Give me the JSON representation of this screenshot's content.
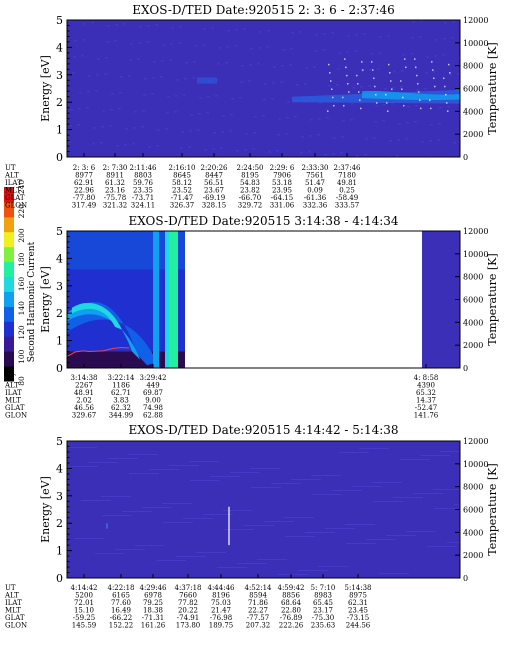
{
  "colorbar": {
    "label": "Second Harmonic Current",
    "ticks": [
      "80",
      "100",
      "120",
      "140",
      "160",
      "180",
      "200",
      "220",
      "240"
    ],
    "colors": [
      "#000000",
      "#2a0a50",
      "#3b1a9a",
      "#2030d0",
      "#1060e8",
      "#10a0f0",
      "#20d8e0",
      "#20f0a0",
      "#80f040",
      "#f0f020",
      "#f0a010",
      "#f05010",
      "#e01010"
    ]
  },
  "panels": [
    {
      "title": "EXOS-D/TED   Date:920515  2: 3: 6 - 2:37:46",
      "ylabel": "Energy [eV]",
      "y2label": "Temperature [K]",
      "yticks": [
        "0",
        "1",
        "2",
        "3",
        "4",
        "5"
      ],
      "y2ticks": [
        "0",
        "2000",
        "4000",
        "6000",
        "8000",
        "10000",
        "12000"
      ],
      "bg": "#3b2fb8",
      "rowlabels": [
        "UT",
        "ALT",
        "ILAT",
        "MLT",
        "GLAT",
        "GLON"
      ],
      "cols": [
        [
          "2: 3: 6",
          "8977",
          "62.91",
          "22.96",
          "-77.80",
          "317.49"
        ],
        [
          "2: 7:30",
          "8911",
          "61.32",
          "23.16",
          "-75.78",
          "321.32"
        ],
        [
          "2:11:46",
          "8803",
          "59.76",
          "23.35",
          "-73.71",
          "324.11"
        ],
        [
          "2:16:10",
          "8645",
          "58.12",
          "23.52",
          "-71.47",
          "326.37"
        ],
        [
          "2:20:26",
          "8447",
          "56.51",
          "23.67",
          "-69.19",
          "328.15"
        ],
        [
          "2:24:50",
          "8195",
          "54.83",
          "23.82",
          "-66.70",
          "329.72"
        ],
        [
          "2:29: 6",
          "7906",
          "53.18",
          "23.95",
          "-64.15",
          "331.06"
        ],
        [
          "2:33:30",
          "7561",
          "51.47",
          "0.09",
          "-61.36",
          "332.36"
        ],
        [
          "2:37:46",
          "7180",
          "49.81",
          "0.25",
          "-58.49",
          "333.57"
        ]
      ]
    },
    {
      "title": "EXOS-D/TED   Date:920515  3:14:38 - 4:14:34",
      "ylabel": "Energy [eV]",
      "y2label": "Temperature [K]",
      "yticks": [
        "0",
        "1",
        "2",
        "3",
        "4",
        "5"
      ],
      "y2ticks": [
        "0",
        "2000",
        "4000",
        "6000",
        "8000",
        "10000",
        "12000"
      ],
      "bg": "#ffffff",
      "rowlabels": [
        "UT",
        "ALT",
        "ILAT",
        "MLT",
        "GLAT",
        "GLON"
      ],
      "cols": [
        [
          "3:14:38",
          "2267",
          "48.91",
          "2.02",
          "46.56",
          "329.67"
        ],
        [
          "3:22:14",
          "1186",
          "62.71",
          "3.83",
          "62.32",
          "344.99"
        ],
        [
          "3:29:42",
          "449",
          "69.87",
          "9.00",
          "74.98",
          "62.88"
        ],
        [
          "4:  8:58",
          "4390",
          "65.32",
          "14.37",
          "-52.47",
          "141.76"
        ]
      ]
    },
    {
      "title": "EXOS-D/TED   Date:920515  4:14:42 - 5:14:38",
      "ylabel": "Energy [eV]",
      "y2label": "Temperature [K]",
      "yticks": [
        "0",
        "1",
        "2",
        "3",
        "4",
        "5"
      ],
      "y2ticks": [
        "0",
        "2000",
        "4000",
        "6000",
        "8000",
        "10000",
        "12000"
      ],
      "bg": "#3b2fb8",
      "rowlabels": [
        "UT",
        "ALT",
        "ILAT",
        "MLT",
        "GLAT",
        "GLON"
      ],
      "cols": [
        [
          "4:14:42",
          "5200",
          "72.01",
          "15.10",
          "-59.25",
          "145.59"
        ],
        [
          "4:22:18",
          "6165",
          "77.60",
          "16.49",
          "-66.22",
          "152.22"
        ],
        [
          "4:29:46",
          "6978",
          "79.25",
          "18.38",
          "-71.31",
          "161.26"
        ],
        [
          "4:37:18",
          "7660",
          "77.82",
          "20.22",
          "-74.91",
          "173.80"
        ],
        [
          "4:44:46",
          "8196",
          "75.03",
          "21.47",
          "-76.98",
          "189.75"
        ],
        [
          "4:52:14",
          "8594",
          "71.86",
          "22.27",
          "-77.57",
          "207.32"
        ],
        [
          "4:59:42",
          "8856",
          "68.64",
          "22.80",
          "-76.89",
          "222.26"
        ],
        [
          "5: 7:10",
          "8983",
          "65.45",
          "23.17",
          "-75.30",
          "235.63"
        ],
        [
          "5:14:38",
          "8975",
          "62.31",
          "23.45",
          "-73.15",
          "244.56"
        ]
      ]
    }
  ],
  "chart_data": [
    {
      "type": "heatmap",
      "title": "EXOS-D/TED   Date:920515  2: 3: 6 - 2:37:46",
      "ylabel": "Energy [eV]",
      "y2label": "Temperature [K]",
      "ylim": [
        0,
        5
      ],
      "y2lim": [
        0,
        12000
      ],
      "features": [
        {
          "name": "enhanced band",
          "t_start": "2:24:50",
          "t_end": "2:37:46",
          "energy_center": 2.2,
          "level": 180
        }
      ]
    },
    {
      "type": "heatmap",
      "title": "EXOS-D/TED   Date:920515  3:14:38 - 4:14:34",
      "ylabel": "Energy [eV]",
      "y2label": "Temperature [K]",
      "ylim": [
        0,
        5
      ],
      "y2lim": [
        0,
        12000
      ],
      "temperature_line": {
        "x": [
          "3:14:38",
          "3:16",
          "3:18",
          "3:20",
          "3:22:14",
          "3:24",
          "3:26",
          "3:27:30"
        ],
        "y": [
          1000,
          1400,
          1500,
          1450,
          1500,
          1700,
          1800,
          1750
        ]
      },
      "features": [
        {
          "name": "cyan arc",
          "from": "3:14:38",
          "to": "3:29:42",
          "energy_start": 2.5,
          "energy_end": 0.2,
          "level": 200
        },
        {
          "name": "green column",
          "t": "3:29:42",
          "level": 210
        }
      ]
    },
    {
      "type": "heatmap",
      "title": "EXOS-D/TED   Date:920515  4:14:42 - 5:14:38",
      "ylabel": "Energy [eV]",
      "y2label": "Temperature [K]",
      "ylim": [
        0,
        5
      ],
      "y2lim": [
        0,
        12000
      ],
      "features": [
        {
          "name": "spike",
          "t": "4:37:18",
          "energy_range": [
            1.2,
            2.6
          ],
          "level": 230
        }
      ]
    }
  ]
}
